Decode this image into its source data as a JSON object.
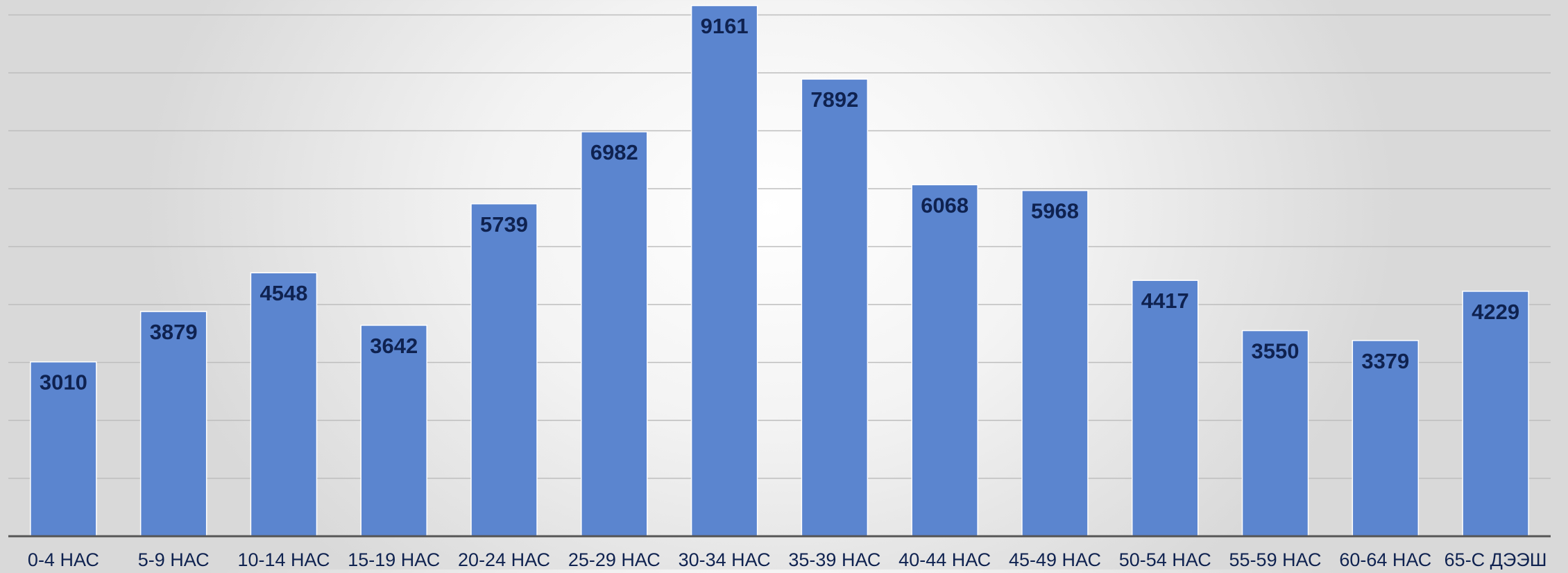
{
  "chart_data": {
    "type": "bar",
    "categories": [
      "0-4 НАС",
      "5-9 НАС",
      "10-14 НАС",
      "15-19 НАС",
      "20-24 НАС",
      "25-29 НАС",
      "30-34 НАС",
      "35-39 НАС",
      "40-44 НАС",
      "45-49 НАС",
      "50-54 НАС",
      "55-59 НАС",
      "60-64 НАС",
      "65-С ДЭЭШ"
    ],
    "values": [
      3010,
      3879,
      4548,
      3642,
      5739,
      6982,
      9161,
      7892,
      6068,
      5968,
      4417,
      3550,
      3379,
      4229
    ],
    "title": "",
    "xlabel": "",
    "ylabel": "",
    "ylim": [
      0,
      9000
    ],
    "grid": true,
    "legend": "none",
    "colors": {
      "bar": "#5b85cf",
      "bar_edge": "#ffffff",
      "data_label": "#0f2250",
      "tick_label": "#0f2250",
      "grid": "#bdbdbd",
      "axis": "#555555"
    }
  }
}
